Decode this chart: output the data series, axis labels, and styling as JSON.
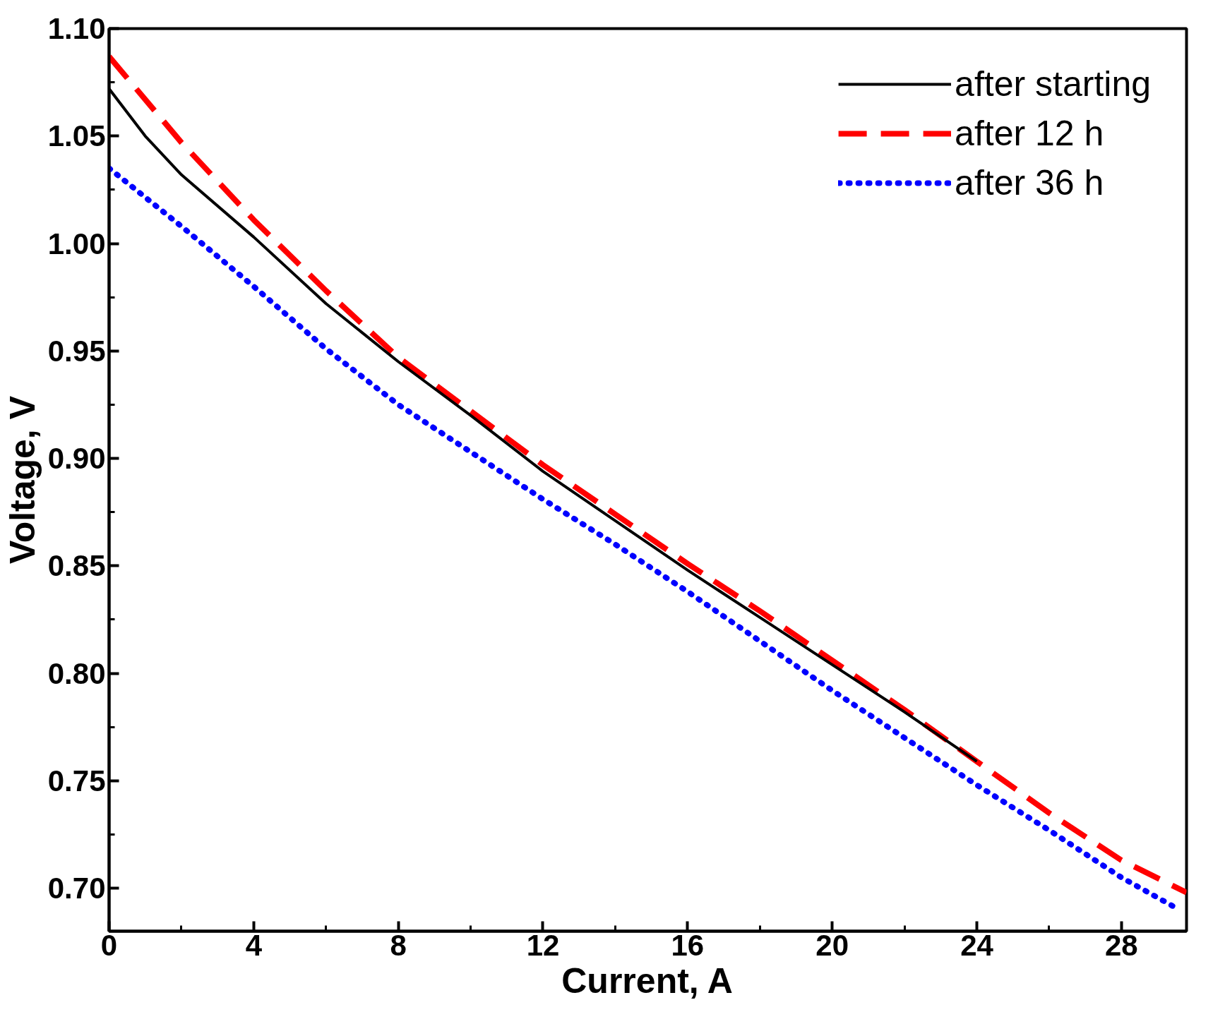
{
  "chart_data": {
    "type": "line",
    "xlabel": "Current, A",
    "ylabel": "Voltage, V",
    "xlim": [
      0,
      29.8
    ],
    "ylim": [
      0.68,
      1.1
    ],
    "xticks": [
      0,
      4,
      8,
      12,
      16,
      20,
      24,
      28
    ],
    "yticks": [
      {
        "value": 0.7,
        "label": "0.70"
      },
      {
        "value": 0.75,
        "label": "0.75"
      },
      {
        "value": 0.8,
        "label": "0.80"
      },
      {
        "value": 0.85,
        "label": "0.85"
      },
      {
        "value": 0.9,
        "label": "0.90"
      },
      {
        "value": 0.95,
        "label": "0.95"
      },
      {
        "value": 1.0,
        "label": "1.00"
      },
      {
        "value": 1.05,
        "label": "1.05"
      },
      {
        "value": 1.1,
        "label": "1.10"
      }
    ],
    "grid": false,
    "legend": "top right",
    "marker": "none",
    "series": [
      {
        "name": "after starting",
        "color": "#000000",
        "line_style": "solid",
        "x": [
          0,
          1,
          2,
          4,
          6,
          8,
          10,
          12,
          14,
          16,
          18,
          20,
          22,
          24
        ],
        "values": [
          1.072,
          1.05,
          1.032,
          1.003,
          0.972,
          0.945,
          0.92,
          0.894,
          0.871,
          0.848,
          0.826,
          0.804,
          0.782,
          0.759
        ]
      },
      {
        "name": "after 12 h",
        "color": "#ff0000",
        "line_style": "dashed",
        "x": [
          0,
          2,
          4,
          6,
          8,
          10,
          12,
          14,
          16,
          18,
          20,
          22,
          24,
          26,
          28,
          29.8
        ],
        "values": [
          1.087,
          1.047,
          1.011,
          0.978,
          0.947,
          0.922,
          0.897,
          0.874,
          0.851,
          0.829,
          0.806,
          0.783,
          0.759,
          0.735,
          0.713,
          0.698
        ]
      },
      {
        "name": "after 36 h",
        "color": "#0000ff",
        "line_style": "dotted",
        "x": [
          0,
          2,
          4,
          6,
          8,
          10,
          12,
          14,
          16,
          18,
          20,
          22,
          24,
          26,
          28,
          29.6
        ],
        "values": [
          1.035,
          1.008,
          0.98,
          0.951,
          0.925,
          0.903,
          0.881,
          0.86,
          0.838,
          0.815,
          0.792,
          0.77,
          0.748,
          0.727,
          0.705,
          0.69
        ]
      }
    ]
  }
}
